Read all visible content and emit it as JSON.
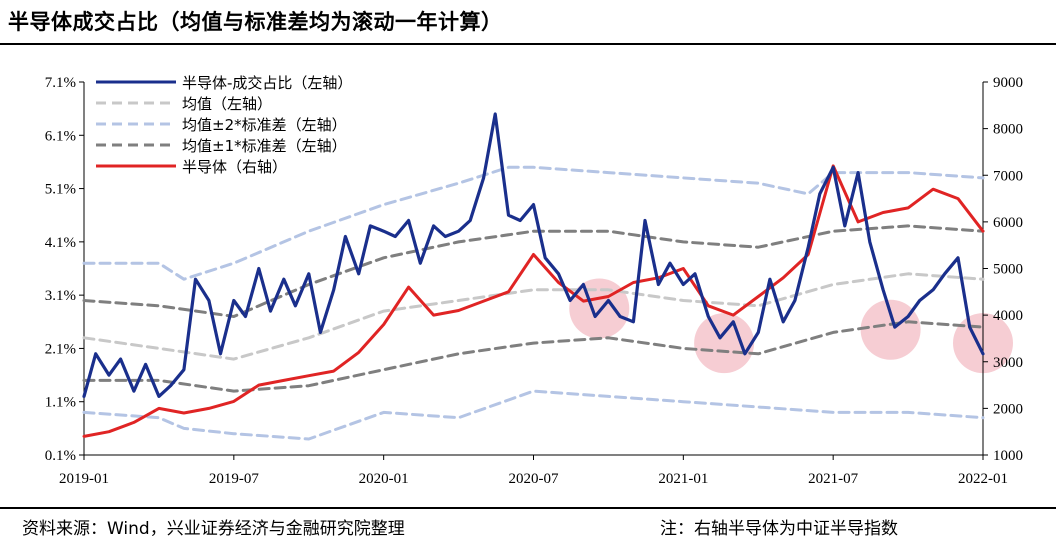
{
  "header": {
    "title": "半导体成交占比（均值与标准差均为滚动一年计算）"
  },
  "footer": {
    "source": "资料来源：Wind，兴业证券经济与金融研究院整理",
    "note": "注：右轴半导体为中证半导指数"
  },
  "colors": {
    "ratio": "#1a2f8c",
    "mean": "#c8c8c8",
    "band2": "#b4c4e4",
    "band1": "#7f7f7f",
    "index": "#e02424",
    "highlight": "#f2b8c0"
  },
  "chart_data": {
    "type": "line",
    "x_tick_labels": [
      "2019-01",
      "2019-07",
      "2020-01",
      "2020-07",
      "2021-01",
      "2021-07",
      "2022-01"
    ],
    "x_range": [
      "2019-01",
      "2022-01"
    ],
    "y_left": {
      "range": [
        0.1,
        7.1
      ],
      "ticks": [
        "0.1%",
        "1.1%",
        "2.1%",
        "3.1%",
        "4.1%",
        "5.1%",
        "6.1%",
        "7.1%"
      ]
    },
    "y_right": {
      "range": [
        1000,
        9000
      ],
      "ticks": [
        "1000",
        "2000",
        "3000",
        "4000",
        "5000",
        "6000",
        "7000",
        "8000",
        "9000"
      ]
    },
    "legend": [
      "半导体-成交占比（左轴）",
      "均值（左轴）",
      "均值±2*标准差（左轴）",
      "均值±1*标准差（左轴）",
      "半导体（右轴）"
    ],
    "legend_position": "top-left",
    "series": [
      {
        "name": "半导体-成交占比（左轴）",
        "axis": "left",
        "x": [
          "2019-01",
          "2019-01-15",
          "2019-02",
          "2019-02-15",
          "2019-03",
          "2019-03-15",
          "2019-04",
          "2019-04-15",
          "2019-05",
          "2019-05-15",
          "2019-06",
          "2019-06-15",
          "2019-07",
          "2019-07-15",
          "2019-08",
          "2019-08-15",
          "2019-09",
          "2019-09-15",
          "2019-10",
          "2019-10-15",
          "2019-11",
          "2019-11-15",
          "2019-12",
          "2019-12-15",
          "2020-01",
          "2020-01-15",
          "2020-02",
          "2020-02-15",
          "2020-03",
          "2020-03-15",
          "2020-04",
          "2020-04-15",
          "2020-05",
          "2020-05-15",
          "2020-06",
          "2020-06-15",
          "2020-07",
          "2020-07-15",
          "2020-08",
          "2020-08-15",
          "2020-09",
          "2020-09-15",
          "2020-10",
          "2020-10-15",
          "2020-11",
          "2020-11-15",
          "2020-12",
          "2020-12-15",
          "2021-01",
          "2021-01-15",
          "2021-02",
          "2021-02-15",
          "2021-03",
          "2021-03-15",
          "2021-04",
          "2021-04-15",
          "2021-05",
          "2021-05-15",
          "2021-06",
          "2021-06-15",
          "2021-07",
          "2021-07-15",
          "2021-08",
          "2021-08-15",
          "2021-09",
          "2021-09-15",
          "2021-10",
          "2021-10-15",
          "2021-11",
          "2021-11-15",
          "2021-12",
          "2021-12-15",
          "2022-01"
        ],
        "values": [
          1.2,
          2.0,
          1.6,
          1.9,
          1.3,
          1.8,
          1.2,
          1.4,
          1.7,
          3.4,
          3.0,
          2.0,
          3.0,
          2.7,
          3.6,
          2.8,
          3.4,
          2.9,
          3.5,
          2.4,
          3.2,
          4.2,
          3.5,
          4.4,
          4.3,
          4.2,
          4.5,
          3.7,
          4.4,
          4.2,
          4.3,
          4.5,
          5.3,
          6.5,
          4.6,
          4.5,
          4.8,
          3.8,
          3.5,
          3.0,
          3.3,
          2.7,
          3.0,
          2.7,
          2.6,
          4.5,
          3.3,
          3.7,
          3.3,
          3.5,
          2.7,
          2.3,
          2.6,
          2.0,
          2.4,
          3.4,
          2.6,
          3.0,
          4.0,
          5.0,
          5.5,
          4.4,
          5.4,
          4.1,
          3.2,
          2.5,
          2.7,
          3.0,
          3.2,
          3.5,
          3.8,
          2.5,
          2.0
        ]
      },
      {
        "name": "均值（左轴）",
        "axis": "left",
        "x": [
          "2019-01",
          "2019-04",
          "2019-07",
          "2019-10",
          "2020-01",
          "2020-04",
          "2020-07",
          "2020-10",
          "2021-01",
          "2021-04",
          "2021-07",
          "2021-10",
          "2022-01"
        ],
        "values": [
          2.3,
          2.1,
          1.9,
          2.3,
          2.8,
          3.0,
          3.2,
          3.2,
          3.0,
          2.9,
          3.3,
          3.5,
          3.4
        ]
      },
      {
        "name": "均值+2*标准差（左轴）",
        "axis": "left",
        "x": [
          "2019-01",
          "2019-04",
          "2019-05",
          "2019-07",
          "2019-10",
          "2020-01",
          "2020-04",
          "2020-06",
          "2020-07",
          "2020-10",
          "2021-01",
          "2021-04",
          "2021-06",
          "2021-07",
          "2021-10",
          "2022-01"
        ],
        "values": [
          3.7,
          3.7,
          3.4,
          3.7,
          4.3,
          4.8,
          5.2,
          5.5,
          5.5,
          5.4,
          5.3,
          5.2,
          5.0,
          5.4,
          5.4,
          5.3
        ]
      },
      {
        "name": "均值-2*标准差（左轴）",
        "axis": "left",
        "x": [
          "2019-01",
          "2019-04",
          "2019-05",
          "2019-07",
          "2019-10",
          "2020-01",
          "2020-04",
          "2020-07",
          "2020-10",
          "2021-01",
          "2021-04",
          "2021-07",
          "2021-10",
          "2022-01"
        ],
        "values": [
          0.9,
          0.8,
          0.6,
          0.5,
          0.4,
          0.9,
          0.8,
          1.3,
          1.2,
          1.1,
          1.0,
          0.9,
          0.9,
          0.8
        ]
      },
      {
        "name": "均值+1*标准差（左轴）",
        "axis": "left",
        "x": [
          "2019-01",
          "2019-04",
          "2019-07",
          "2019-10",
          "2020-01",
          "2020-04",
          "2020-07",
          "2020-10",
          "2021-01",
          "2021-04",
          "2021-07",
          "2021-10",
          "2022-01"
        ],
        "values": [
          3.0,
          2.9,
          2.7,
          3.3,
          3.8,
          4.1,
          4.3,
          4.3,
          4.1,
          4.0,
          4.3,
          4.4,
          4.3
        ]
      },
      {
        "name": "均值-1*标准差（左轴）",
        "axis": "left",
        "x": [
          "2019-01",
          "2019-04",
          "2019-07",
          "2019-10",
          "2020-01",
          "2020-04",
          "2020-07",
          "2020-10",
          "2021-01",
          "2021-04",
          "2021-07",
          "2021-10",
          "2022-01"
        ],
        "values": [
          1.5,
          1.5,
          1.3,
          1.4,
          1.7,
          2.0,
          2.2,
          2.3,
          2.1,
          2.0,
          2.4,
          2.6,
          2.5
        ]
      },
      {
        "name": "半导体（右轴）",
        "axis": "right",
        "x": [
          "2019-01",
          "2019-02",
          "2019-03",
          "2019-04",
          "2019-05",
          "2019-06",
          "2019-07",
          "2019-08",
          "2019-09",
          "2019-10",
          "2019-11",
          "2019-12",
          "2020-01",
          "2020-02",
          "2020-03",
          "2020-04",
          "2020-05",
          "2020-06",
          "2020-07",
          "2020-08",
          "2020-09",
          "2020-10",
          "2020-11",
          "2020-12",
          "2021-01",
          "2021-02",
          "2021-03",
          "2021-04",
          "2021-05",
          "2021-06",
          "2021-07",
          "2021-08",
          "2021-09",
          "2021-10",
          "2021-11",
          "2021-12",
          "2022-01"
        ],
        "values": [
          1400,
          1500,
          1700,
          2000,
          1900,
          2000,
          2150,
          2500,
          2600,
          2700,
          2800,
          3200,
          3800,
          4600,
          4000,
          4100,
          4300,
          4500,
          5300,
          4700,
          4300,
          4400,
          4700,
          4800,
          5000,
          4200,
          4000,
          4400,
          4800,
          5300,
          7200,
          6000,
          6200,
          6300,
          6700,
          6500,
          5800
        ]
      }
    ],
    "highlights": [
      {
        "x": "2020-09-20",
        "y": 2.85
      },
      {
        "x": "2021-02-20",
        "y": 2.2
      },
      {
        "x": "2021-09-10",
        "y": 2.45
      },
      {
        "x": "2022-01",
        "y": 2.2
      }
    ]
  }
}
